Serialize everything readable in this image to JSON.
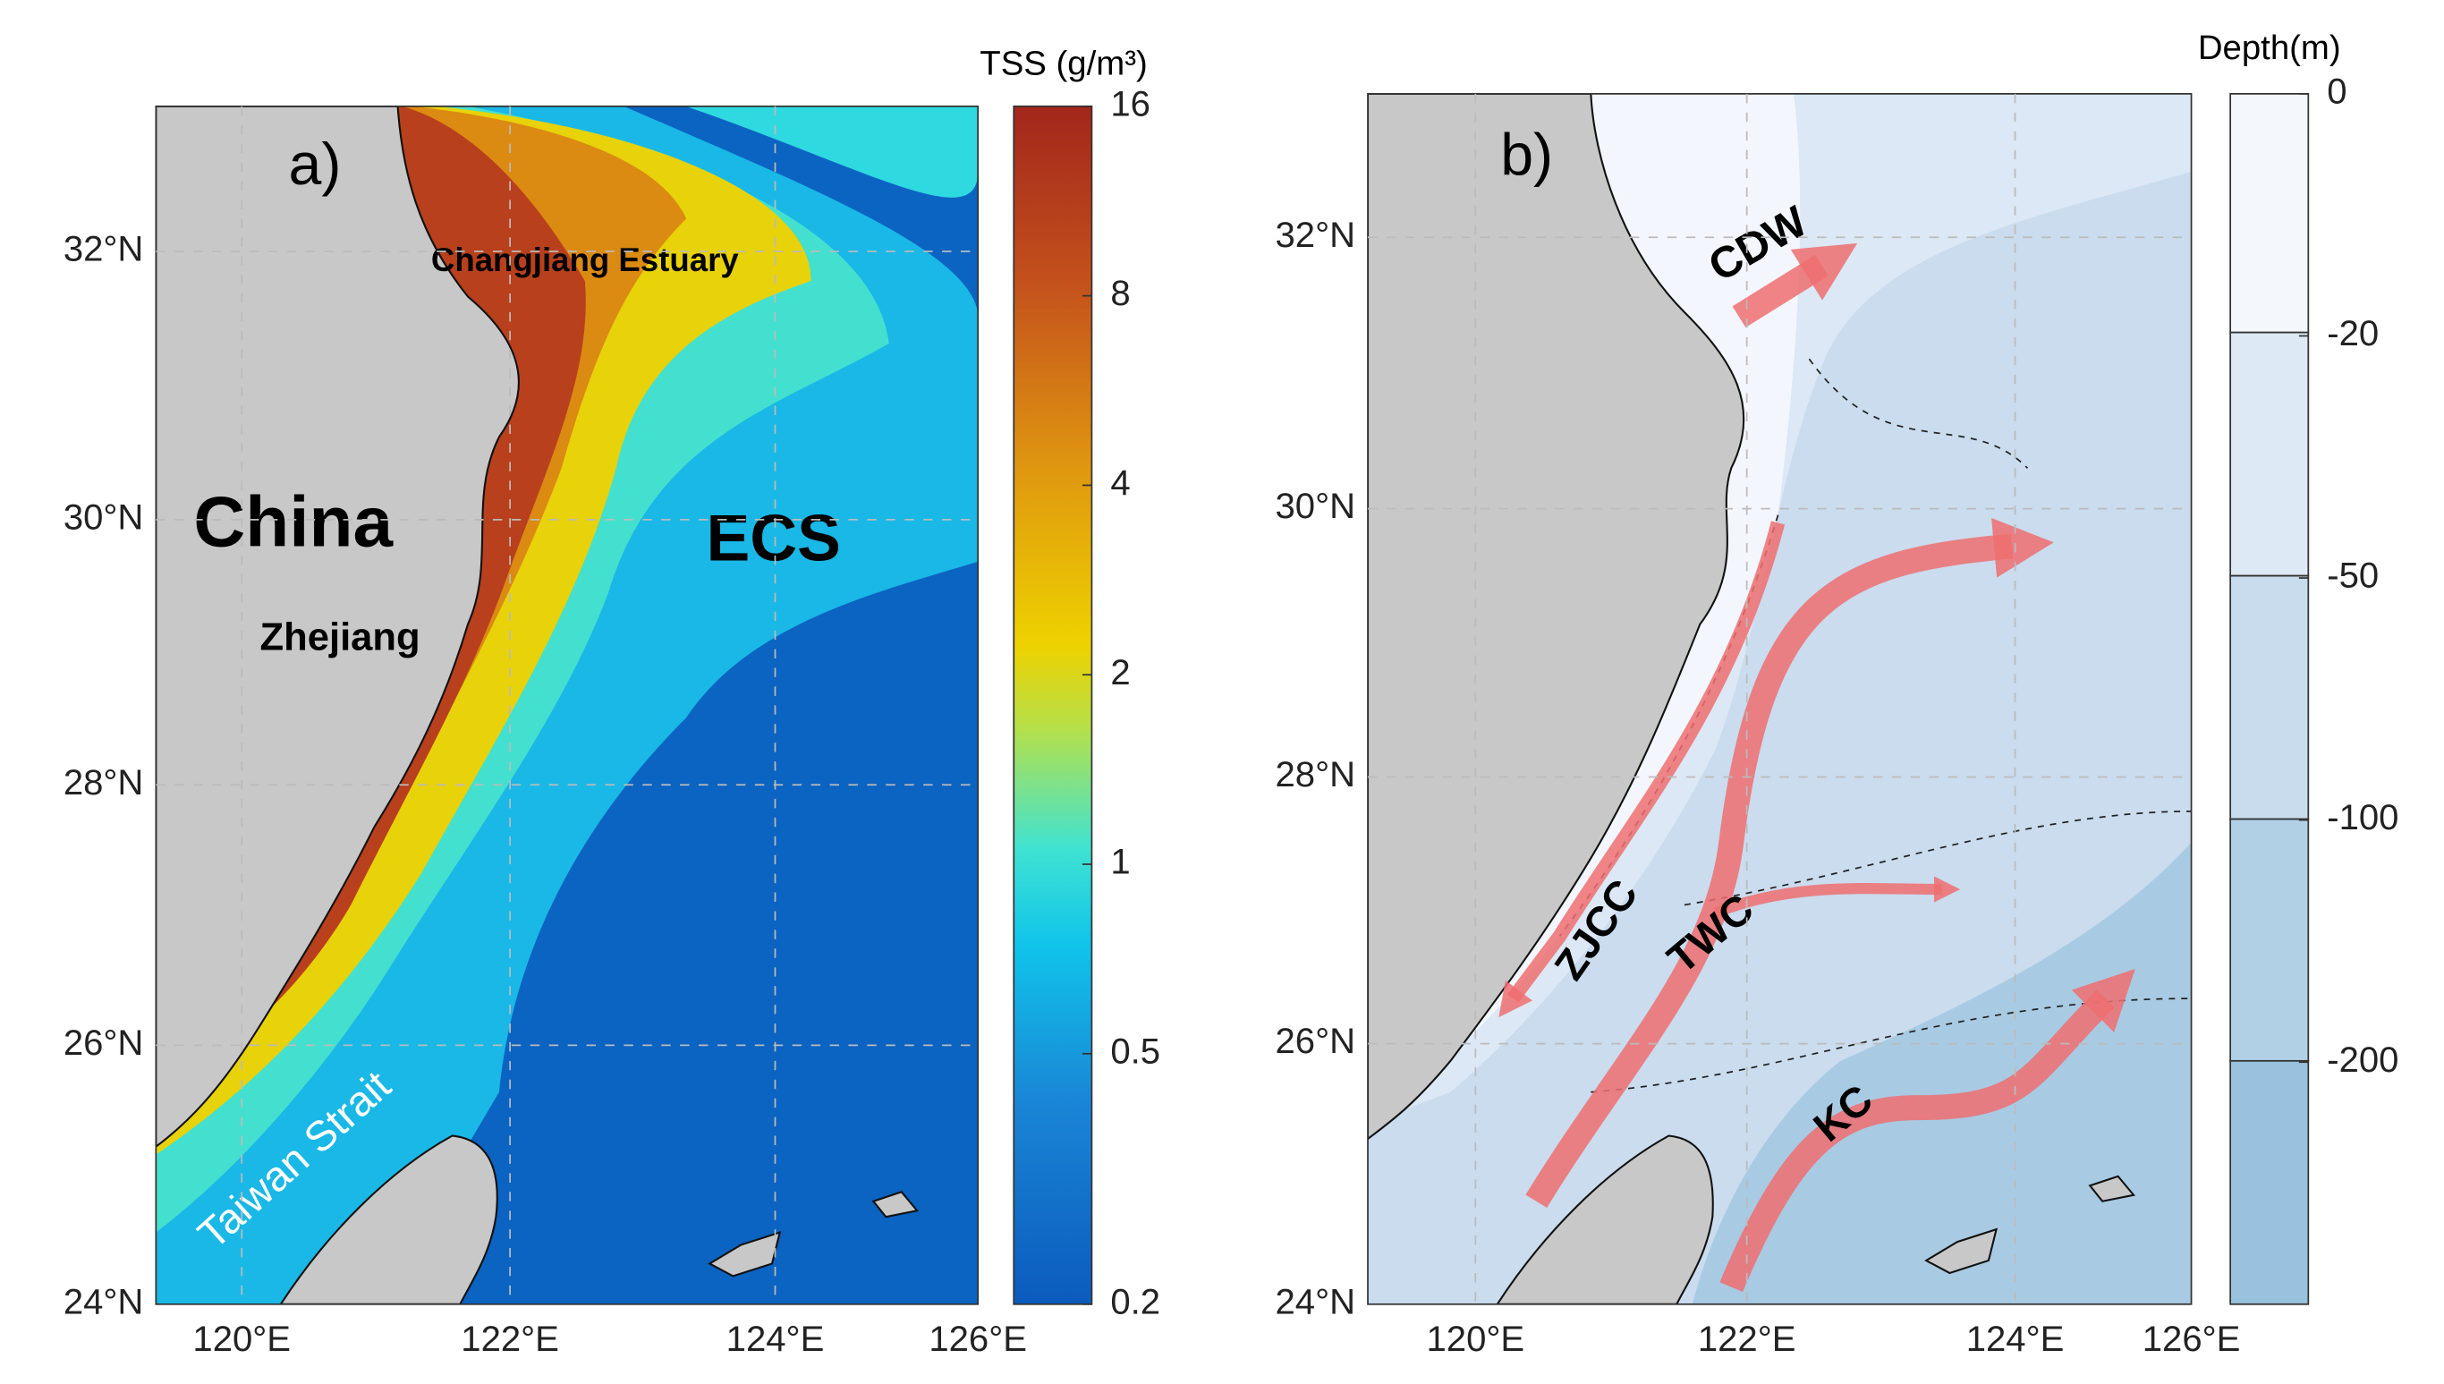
{
  "panels": [
    {
      "label": "a)",
      "lat_ticks": [
        "32°N",
        "30°N",
        "28°N",
        "26°N",
        "24°N"
      ],
      "lon_ticks": [
        "120°E",
        "122°E",
        "124°E",
        "126°E"
      ],
      "places": [
        "China",
        "ECS",
        "Zhejiang",
        "Changjiang Estuary",
        "Taiwan Strait"
      ],
      "colorbar": {
        "title": "TSS (g/m³)",
        "scale": "log",
        "ticks": [
          16,
          8,
          4,
          2,
          1,
          0.5,
          0.2
        ]
      }
    },
    {
      "label": "b)",
      "lat_ticks": [
        "32°N",
        "30°N",
        "28°N",
        "26°N",
        "24°N"
      ],
      "lon_ticks": [
        "120°E",
        "122°E",
        "124°E",
        "126°E"
      ],
      "currents": [
        "CDW",
        "ZJCC",
        "TWC",
        "KC"
      ],
      "colorbar": {
        "title": "Depth(m)",
        "ticks": [
          0,
          -20,
          -50,
          -100,
          -200
        ]
      }
    }
  ]
}
